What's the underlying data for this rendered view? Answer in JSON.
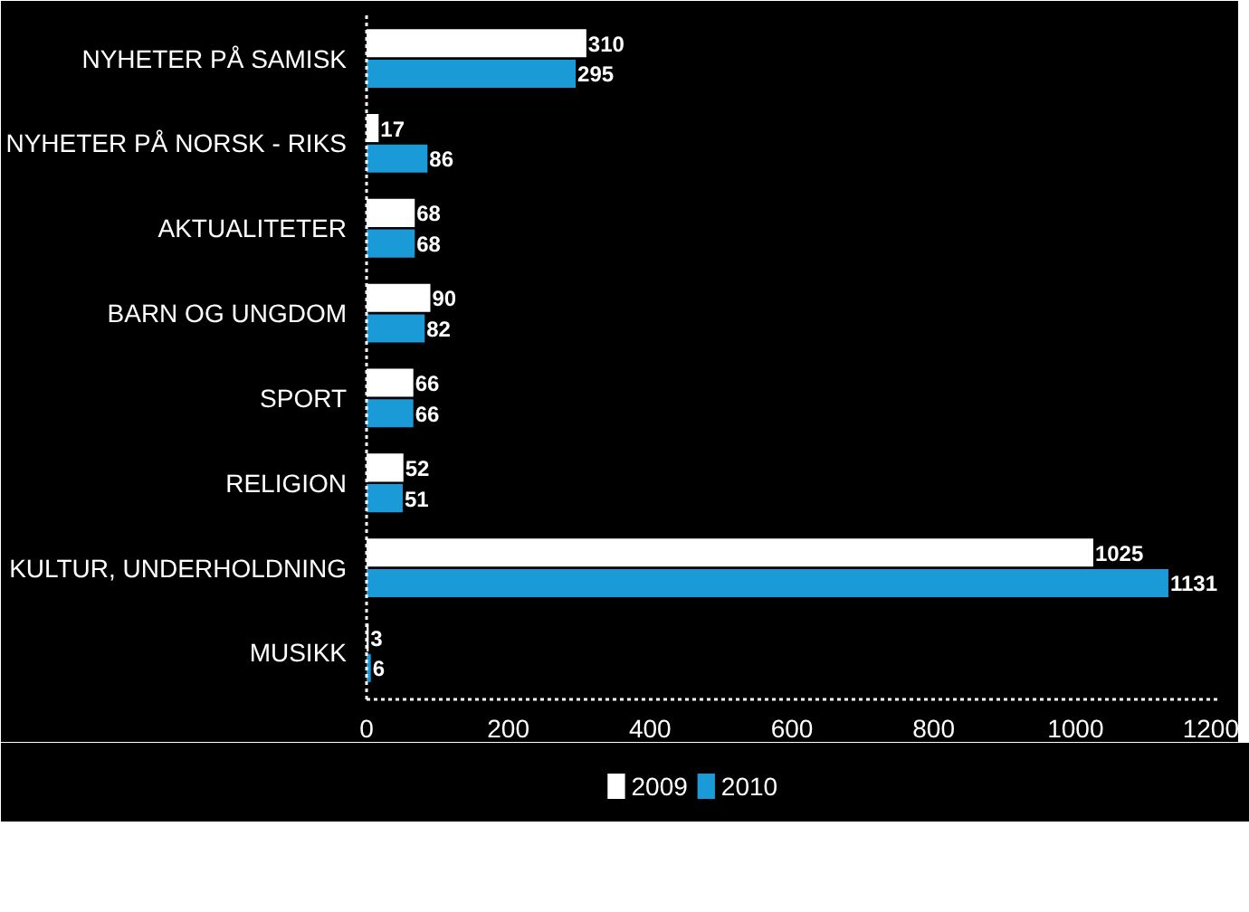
{
  "chart_data": {
    "type": "bar",
    "orientation": "horizontal",
    "categories": [
      "NYHETER PÅ SAMISK",
      "NYHETER PÅ NORSK - RIKS",
      "AKTUALITETER",
      "BARN OG UNGDOM",
      "SPORT",
      "RELIGION",
      "KULTUR, UNDERHOLDNING",
      "MUSIKK"
    ],
    "series": [
      {
        "name": "2009",
        "color": "#ffffff",
        "values": [
          310,
          17,
          68,
          90,
          66,
          52,
          1025,
          3
        ]
      },
      {
        "name": "2010",
        "color": "#1a9ad6",
        "values": [
          295,
          86,
          68,
          82,
          66,
          51,
          1131,
          6
        ]
      }
    ],
    "xlim": [
      0,
      1200
    ],
    "xticks": [
      0,
      200,
      400,
      600,
      800,
      1000,
      1200
    ],
    "data_labels": true,
    "legend": "bottom",
    "grid": false
  }
}
